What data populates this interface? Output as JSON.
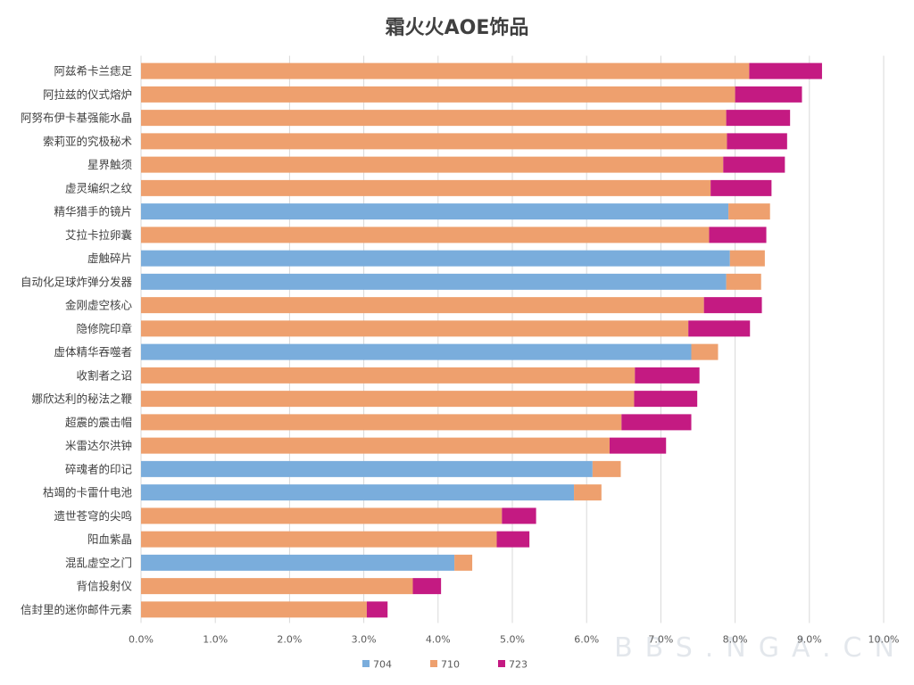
{
  "chart_data": {
    "type": "bar",
    "orientation": "horizontal",
    "stacked": true,
    "title": "霜火火AOE饰品",
    "xlabel": "",
    "ylabel": "",
    "xlim": [
      0,
      0.1
    ],
    "x_ticks": [
      "0.0%",
      "1.0%",
      "2.0%",
      "3.0%",
      "4.0%",
      "5.0%",
      "6.0%",
      "7.0%",
      "8.0%",
      "9.0%",
      "10.0%"
    ],
    "grid": true,
    "legend_position": "bottom",
    "watermark": "BBS.NGA.CN",
    "series_names": [
      "704",
      "710",
      "723"
    ],
    "colors": {
      "704": "#7aaddc",
      "710": "#eea06e",
      "723": "#c41a82"
    },
    "categories": [
      "阿兹希卡兰痣足",
      "阿拉兹的仪式熔炉",
      "阿努布伊卡基强能水晶",
      "索莉亚的究极秘术",
      "星界触须",
      "虚灵编织之纹",
      "精华猎手的镜片",
      "艾拉卡拉卵囊",
      "虚触碎片",
      "自动化足球炸弹分发器",
      "金刚虚空核心",
      "隐修院印章",
      "虚体精华吞噬者",
      "收割者之诏",
      "娜欣达利的秘法之鞭",
      "超震的震击帽",
      "米雷达尔洪钟",
      "碎魂者的印记",
      "枯竭的卡雷什电池",
      "遗世苍穹的尖鸣",
      "阳血紫晶",
      "混乱虚空之门",
      "背信投射仪",
      "信封里的迷你邮件元素"
    ],
    "bars": [
      {
        "base_series": "710",
        "base": 0.0819,
        "increment_series": "723",
        "increment": 0.0098
      },
      {
        "base_series": "710",
        "base": 0.08,
        "increment_series": "723",
        "increment": 0.009
      },
      {
        "base_series": "710",
        "base": 0.0788,
        "increment_series": "723",
        "increment": 0.0086
      },
      {
        "base_series": "710",
        "base": 0.0789,
        "increment_series": "723",
        "increment": 0.0081
      },
      {
        "base_series": "710",
        "base": 0.0784,
        "increment_series": "723",
        "increment": 0.0083
      },
      {
        "base_series": "710",
        "base": 0.0767,
        "increment_series": "723",
        "increment": 0.0082
      },
      {
        "base_series": "704",
        "base": 0.0791,
        "increment_series": "710",
        "increment": 0.0056
      },
      {
        "base_series": "710",
        "base": 0.0765,
        "increment_series": "723",
        "increment": 0.0077
      },
      {
        "base_series": "704",
        "base": 0.0793,
        "increment_series": "710",
        "increment": 0.0047
      },
      {
        "base_series": "704",
        "base": 0.0788,
        "increment_series": "710",
        "increment": 0.0047
      },
      {
        "base_series": "710",
        "base": 0.0758,
        "increment_series": "723",
        "increment": 0.0078
      },
      {
        "base_series": "710",
        "base": 0.0737,
        "increment_series": "723",
        "increment": 0.0083
      },
      {
        "base_series": "704",
        "base": 0.0741,
        "increment_series": "710",
        "increment": 0.0036
      },
      {
        "base_series": "710",
        "base": 0.0665,
        "increment_series": "723",
        "increment": 0.0087
      },
      {
        "base_series": "710",
        "base": 0.0664,
        "increment_series": "723",
        "increment": 0.0085
      },
      {
        "base_series": "710",
        "base": 0.0647,
        "increment_series": "723",
        "increment": 0.0094
      },
      {
        "base_series": "710",
        "base": 0.0631,
        "increment_series": "723",
        "increment": 0.0076
      },
      {
        "base_series": "704",
        "base": 0.0608,
        "increment_series": "710",
        "increment": 0.0038
      },
      {
        "base_series": "704",
        "base": 0.0583,
        "increment_series": "710",
        "increment": 0.0037
      },
      {
        "base_series": "710",
        "base": 0.0486,
        "increment_series": "723",
        "increment": 0.0046
      },
      {
        "base_series": "710",
        "base": 0.0479,
        "increment_series": "723",
        "increment": 0.0044
      },
      {
        "base_series": "704",
        "base": 0.0422,
        "increment_series": "710",
        "increment": 0.0024
      },
      {
        "base_series": "710",
        "base": 0.0366,
        "increment_series": "723",
        "increment": 0.0038
      },
      {
        "base_series": "710",
        "base": 0.0304,
        "increment_series": "723",
        "increment": 0.0028
      }
    ]
  }
}
